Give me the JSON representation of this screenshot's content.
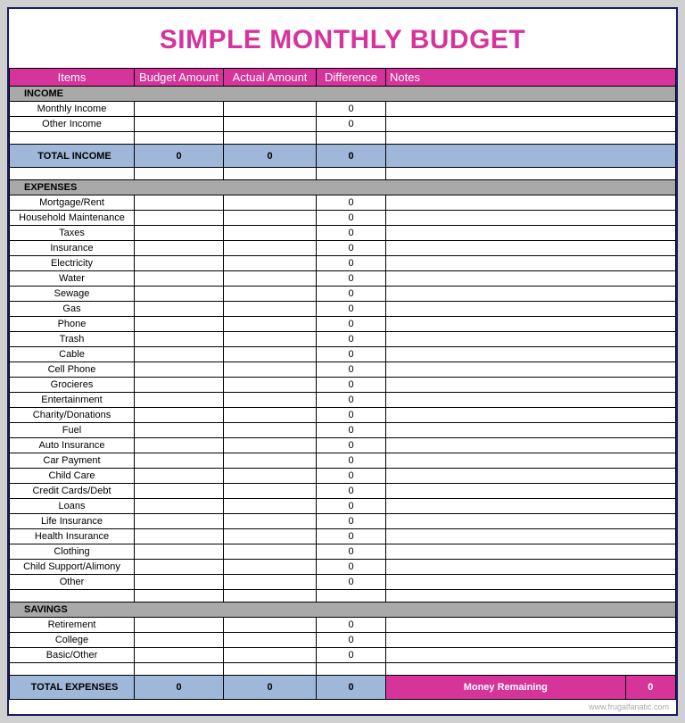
{
  "title": "SIMPLE MONTHLY BUDGET",
  "colors": {
    "title": "#d6339b",
    "header_bg": "#d6339b",
    "section_bg": "#a9a9a9",
    "total_bg": "#9fb7d9",
    "money_bg": "#d6339b",
    "border": "#1a1a66"
  },
  "headers": {
    "items": "Items",
    "budget": "Budget Amount",
    "actual": "Actual Amount",
    "diff": "Difference",
    "notes": "Notes"
  },
  "sections": [
    {
      "label": "INCOME",
      "rows": [
        {
          "name": "Monthly Income",
          "budget": "",
          "actual": "",
          "diff": "0",
          "notes": ""
        },
        {
          "name": "Other Income",
          "budget": "",
          "actual": "",
          "diff": "0",
          "notes": ""
        }
      ],
      "total": {
        "label": "TOTAL INCOME",
        "budget": "0",
        "actual": "0",
        "diff": "0",
        "notes": ""
      }
    },
    {
      "label": "EXPENSES",
      "rows": [
        {
          "name": "Mortgage/Rent",
          "budget": "",
          "actual": "",
          "diff": "0",
          "notes": ""
        },
        {
          "name": "Household Maintenance",
          "budget": "",
          "actual": "",
          "diff": "0",
          "notes": ""
        },
        {
          "name": "Taxes",
          "budget": "",
          "actual": "",
          "diff": "0",
          "notes": ""
        },
        {
          "name": "Insurance",
          "budget": "",
          "actual": "",
          "diff": "0",
          "notes": ""
        },
        {
          "name": "Electricity",
          "budget": "",
          "actual": "",
          "diff": "0",
          "notes": ""
        },
        {
          "name": "Water",
          "budget": "",
          "actual": "",
          "diff": "0",
          "notes": ""
        },
        {
          "name": "Sewage",
          "budget": "",
          "actual": "",
          "diff": "0",
          "notes": ""
        },
        {
          "name": "Gas",
          "budget": "",
          "actual": "",
          "diff": "0",
          "notes": ""
        },
        {
          "name": "Phone",
          "budget": "",
          "actual": "",
          "diff": "0",
          "notes": ""
        },
        {
          "name": "Trash",
          "budget": "",
          "actual": "",
          "diff": "0",
          "notes": ""
        },
        {
          "name": "Cable",
          "budget": "",
          "actual": "",
          "diff": "0",
          "notes": ""
        },
        {
          "name": "Cell Phone",
          "budget": "",
          "actual": "",
          "diff": "0",
          "notes": ""
        },
        {
          "name": "Grocieres",
          "budget": "",
          "actual": "",
          "diff": "0",
          "notes": ""
        },
        {
          "name": "Entertainment",
          "budget": "",
          "actual": "",
          "diff": "0",
          "notes": ""
        },
        {
          "name": "Charity/Donations",
          "budget": "",
          "actual": "",
          "diff": "0",
          "notes": ""
        },
        {
          "name": "Fuel",
          "budget": "",
          "actual": "",
          "diff": "0",
          "notes": ""
        },
        {
          "name": "Auto Insurance",
          "budget": "",
          "actual": "",
          "diff": "0",
          "notes": ""
        },
        {
          "name": "Car Payment",
          "budget": "",
          "actual": "",
          "diff": "0",
          "notes": ""
        },
        {
          "name": "Child Care",
          "budget": "",
          "actual": "",
          "diff": "0",
          "notes": ""
        },
        {
          "name": "Credit Cards/Debt",
          "budget": "",
          "actual": "",
          "diff": "0",
          "notes": ""
        },
        {
          "name": "Loans",
          "budget": "",
          "actual": "",
          "diff": "0",
          "notes": ""
        },
        {
          "name": "Life Insurance",
          "budget": "",
          "actual": "",
          "diff": "0",
          "notes": ""
        },
        {
          "name": "Health Insurance",
          "budget": "",
          "actual": "",
          "diff": "0",
          "notes": ""
        },
        {
          "name": "Clothing",
          "budget": "",
          "actual": "",
          "diff": "0",
          "notes": ""
        },
        {
          "name": "Child Support/Alimony",
          "budget": "",
          "actual": "",
          "diff": "0",
          "notes": ""
        },
        {
          "name": "Other",
          "budget": "",
          "actual": "",
          "diff": "0",
          "notes": ""
        }
      ]
    },
    {
      "label": "SAVINGS",
      "rows": [
        {
          "name": "Retirement",
          "budget": "",
          "actual": "",
          "diff": "0",
          "notes": ""
        },
        {
          "name": "College",
          "budget": "",
          "actual": "",
          "diff": "0",
          "notes": ""
        },
        {
          "name": "Basic/Other",
          "budget": "",
          "actual": "",
          "diff": "0",
          "notes": ""
        }
      ]
    }
  ],
  "expenses_total": {
    "label": "TOTAL EXPENSES",
    "budget": "0",
    "actual": "0",
    "diff": "0",
    "money_label": "Money Remaining",
    "money_value": "0"
  },
  "footer": "www.frugalfanatic.com"
}
